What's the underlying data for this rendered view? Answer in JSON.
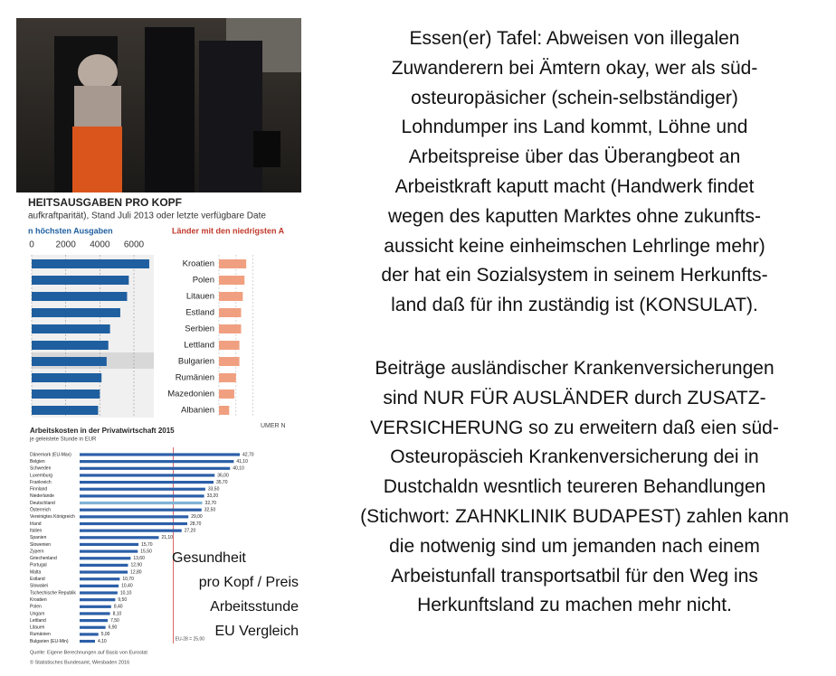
{
  "health_chart": {
    "title": "HEITSAUSGABEN PRO KOPF",
    "subtitle": "aufkraftparität), Stand Juli 2013 oder letzte verfügbare Date",
    "left_heading": "n höchsten Ausgaben",
    "right_heading": "Länder mit den niedrigsten A",
    "axis_ticks": [
      0,
      2000,
      4000,
      6000
    ],
    "left_values": [
      6900,
      5700,
      5600,
      5200,
      4600,
      4500,
      4400,
      4100,
      4000,
      3900
    ],
    "right_rows": [
      {
        "country": "Kroatien",
        "value": 1600
      },
      {
        "country": "Polen",
        "value": 1500
      },
      {
        "country": "Litauen",
        "value": 1400
      },
      {
        "country": "Estland",
        "value": 1300
      },
      {
        "country": "Serbien",
        "value": 1300
      },
      {
        "country": "Lettland",
        "value": 1200
      },
      {
        "country": "Bulgarien",
        "value": 1200
      },
      {
        "country": "Rumänien",
        "value": 1000
      },
      {
        "country": "Mazedonien",
        "value": 900
      },
      {
        "country": "Albanien",
        "value": 600
      }
    ],
    "footer": "UMER N"
  },
  "labour_chart": {
    "title": "Arbeitskosten in der Privatwirtschaft 2015",
    "subtitle": "je geleistete Stunde in EUR",
    "rows": [
      {
        "country": "Dänemark (EU-Max)",
        "value": 42.7,
        "label": "42,70"
      },
      {
        "country": "Belgien",
        "value": 41.1,
        "label": "41,10"
      },
      {
        "country": "Schweden",
        "value": 40.1,
        "label": "40,10"
      },
      {
        "country": "Luxemburg",
        "value": 36,
        "label": "36,00"
      },
      {
        "country": "Frankreich",
        "value": 35.7,
        "label": "35,70"
      },
      {
        "country": "Finnland",
        "value": 33.5,
        "label": "33,50"
      },
      {
        "country": "Niederlande",
        "value": 33.2,
        "label": "33,20"
      },
      {
        "country": "Deutschland",
        "value": 32.7,
        "label": "32,70"
      },
      {
        "country": "Österreich",
        "value": 32.5,
        "label": "32,50"
      },
      {
        "country": "Vereinigtes Königreich",
        "value": 29,
        "label": "29,00"
      },
      {
        "country": "Irland",
        "value": 28.7,
        "label": "28,70"
      },
      {
        "country": "Italien",
        "value": 27.2,
        "label": "27,20"
      },
      {
        "country": "Spanien",
        "value": 21.1,
        "label": "21,10"
      },
      {
        "country": "Slowenien",
        "value": 15.7,
        "label": "15,70"
      },
      {
        "country": "Zypern",
        "value": 15.5,
        "label": "15,50"
      },
      {
        "country": "Griechenland",
        "value": 13.6,
        "label": "13,60"
      },
      {
        "country": "Portugal",
        "value": 12.9,
        "label": "12,90"
      },
      {
        "country": "Malta",
        "value": 12.8,
        "label": "12,80"
      },
      {
        "country": "Estland",
        "value": 10.7,
        "label": "10,70"
      },
      {
        "country": "Slowakei",
        "value": 10.4,
        "label": "10,40"
      },
      {
        "country": "Tschechische Republik",
        "value": 10.1,
        "label": "10,10"
      },
      {
        "country": "Kroatien",
        "value": 9.5,
        "label": "9,50"
      },
      {
        "country": "Polen",
        "value": 8.4,
        "label": "8,40"
      },
      {
        "country": "Ungarn",
        "value": 8.1,
        "label": "8,10"
      },
      {
        "country": "Lettland",
        "value": 7.5,
        "label": "7,50"
      },
      {
        "country": "Litauen",
        "value": 6.9,
        "label": "6,90"
      },
      {
        "country": "Rumänien",
        "value": 5,
        "label": "5,00"
      },
      {
        "country": "Bulgarien (EU-Min)",
        "value": 4.1,
        "label": "4,10"
      }
    ],
    "average": {
      "value": 25,
      "label": "EU-28 = 25,00"
    },
    "source": "Quelle: Eigene Berechnungen auf Basis von Eurostat",
    "copyright": "© Statistisches Bundesamt, Wiesbaden 2016"
  },
  "overlay": [
    "Gesundheit",
    "pro Kopf / Preis",
    "Arbeitsstunde",
    "EU Vergleich"
  ],
  "paragraphs": [
    [
      "Essen(er) Tafel: Abweisen von illegalen",
      "Zuwanderern bei Ämtern okay, wer als süd-",
      "osteuropäsicher (schein-selbständiger)",
      "Lohndumper ins Land kommt, Löhne und",
      "Arbeitspreise über das Überangbeot an",
      "Arbeistkraft kaputt macht (Handwerk findet",
      "wegen des kaputten Marktes ohne zukunfts-",
      "aussicht keine einheimschen Lehrlinge mehr)",
      "der hat ein Sozialsystem in seinem Herkunfts-",
      "land daß für ihn zuständig ist (KONSULAT)."
    ],
    [
      "Beiträge ausländischer Krankenversicherungen",
      "sind NUR FÜR AUSLÄNDER durch ZUSATZ-",
      "VERSICHERUNG so zu erweitern daß eien süd-",
      "Osteuropäscieh Krankenversicherung dei in",
      "Dustchaldn wesntlich teureren Behandlungen",
      "(Stichwort: ZAHNKLINIK BUDAPEST) zahlen kann",
      "die notwenig sind um jemanden nach einem",
      "Arbeistunfall transportsatbil für den Weg ins",
      "Herkunftsland zu machen mehr nicht."
    ]
  ]
}
